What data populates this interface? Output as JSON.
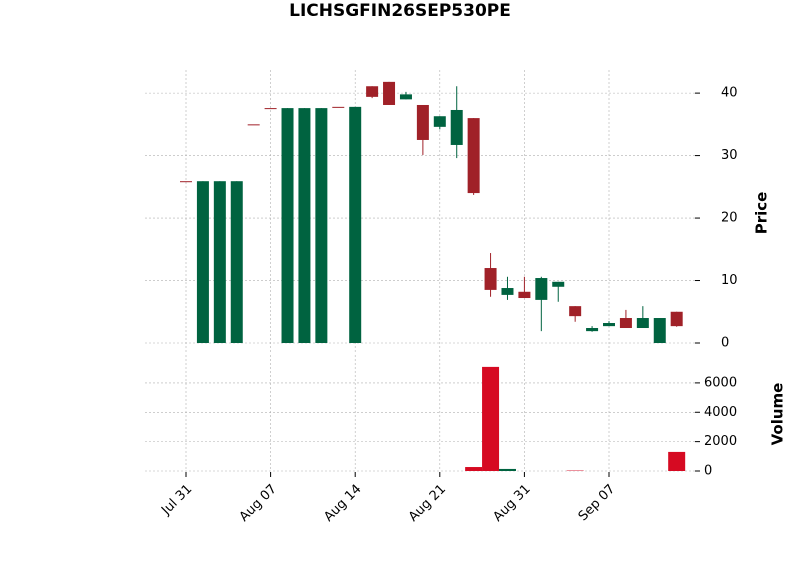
{
  "chart_data": {
    "type": "candlestick",
    "title": "LICHSGFIN26SEP530PE",
    "categories": [
      "Jul 31",
      null,
      null,
      null,
      null,
      "Aug 07",
      null,
      null,
      null,
      null,
      "Aug 14",
      null,
      null,
      null,
      null,
      "Aug 21",
      null,
      null,
      null,
      null,
      "Aug 31",
      null,
      null,
      null,
      null,
      "Sep 07",
      null,
      null,
      null,
      null
    ],
    "open": [
      25.9,
      0,
      0,
      0,
      35.0,
      37.6,
      0,
      0,
      0,
      37.8,
      0,
      41.1,
      41.8,
      39.0,
      38.1,
      34.6,
      31.7,
      36.0,
      12.0,
      7.7,
      8.2,
      6.9,
      9.0,
      5.9,
      1.9,
      2.7,
      4.0,
      2.4,
      0,
      5.0
    ],
    "high": [
      25.9,
      25.9,
      25.9,
      25.9,
      35.0,
      37.6,
      37.6,
      37.6,
      37.6,
      37.8,
      37.8,
      41.1,
      41.8,
      40.2,
      38.1,
      36.3,
      41.1,
      36.0,
      14.4,
      10.6,
      10.6,
      10.6,
      9.8,
      5.9,
      2.7,
      3.5,
      5.3,
      5.9,
      4.0,
      5.0
    ],
    "low": [
      25.9,
      0,
      0,
      0,
      35.0,
      37.6,
      0,
      0,
      0,
      37.8,
      0,
      39.2,
      38.1,
      39.0,
      30.1,
      34.2,
      29.6,
      23.7,
      7.4,
      6.9,
      7.2,
      1.9,
      6.6,
      3.4,
      1.8,
      2.7,
      2.4,
      2.4,
      0,
      2.6
    ],
    "close": [
      25.9,
      25.9,
      25.9,
      25.9,
      35.0,
      37.6,
      37.6,
      37.6,
      37.6,
      37.8,
      37.8,
      39.4,
      38.1,
      39.8,
      32.5,
      36.3,
      37.3,
      24.0,
      8.5,
      8.8,
      7.2,
      10.4,
      9.8,
      4.3,
      2.4,
      3.2,
      2.4,
      4.0,
      4.0,
      2.7
    ],
    "volume": [
      0,
      0,
      0,
      0,
      0,
      0,
      0,
      0,
      0,
      0,
      0,
      0,
      0,
      0,
      0,
      0,
      0,
      270,
      7090,
      140,
      0,
      0,
      0,
      30,
      0,
      0,
      0,
      0,
      0,
      1300
    ],
    "ylabel": "Price",
    "volume_label": "Volume",
    "ylim": [
      -1.6,
      43.7
    ],
    "yticks": [
      0,
      10,
      20,
      30,
      40
    ],
    "volume_ylim": [
      0,
      7900
    ],
    "volume_yticks": [
      0,
      2000,
      4000,
      6000
    ],
    "up_color": "#006340",
    "down_color": "#a02128",
    "volume_up_color": "#006340",
    "volume_down_color": "#d60a22",
    "grid": true
  }
}
